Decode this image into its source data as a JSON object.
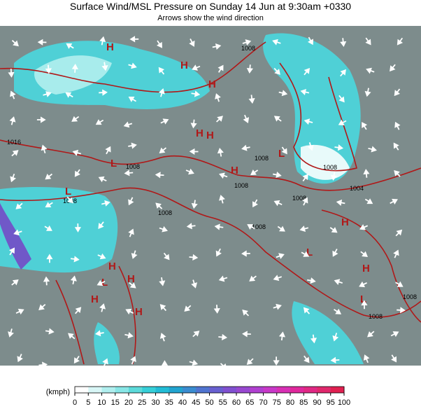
{
  "header": {
    "title": "Surface Wind/MSL Pressure on Sunday 14 Jun at 9:30am +0330",
    "subtitle": "Arrows show the wind direction"
  },
  "isobar_labels": [
    "1008",
    "1016",
    "1008",
    "1008",
    "1008",
    "1008",
    "1008",
    "1008",
    "1008",
    "1008",
    "1004",
    "1008",
    "1008"
  ],
  "centers": [
    "H",
    "H",
    "H",
    "H",
    "H",
    "L",
    "L",
    "H",
    "H",
    "H",
    "L",
    "H",
    "H",
    "L",
    "L",
    "H",
    "H",
    "L"
  ],
  "colorbar": {
    "unit": "(kmph)",
    "ticks": [
      0,
      5,
      10,
      15,
      20,
      25,
      30,
      35,
      40,
      45,
      50,
      55,
      60,
      65,
      70,
      75,
      80,
      85,
      90,
      95,
      100
    ],
    "colors": [
      "#ffffff",
      "#d8f6f6",
      "#b0eeee",
      "#88e6e6",
      "#5cdada",
      "#36cfd8",
      "#22bcd6",
      "#22a4d0",
      "#3a8cd0",
      "#5074d0",
      "#6860d0",
      "#8050d0",
      "#9848d0",
      "#b040d0",
      "#c838c8",
      "#d830b4",
      "#e0289c",
      "#e02884",
      "#e0286c",
      "#e02050"
    ]
  }
}
